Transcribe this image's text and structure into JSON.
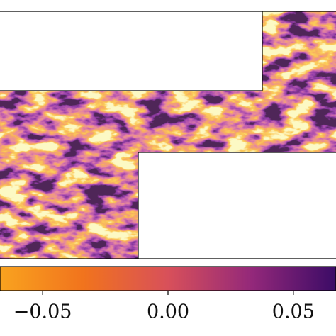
{
  "chart_data": {
    "type": "heatmap",
    "colorbar": {
      "clim": [
        -0.067,
        0.067
      ],
      "ticks": [
        {
          "value": -0.05,
          "label": "−0.05"
        },
        {
          "value": 0,
          "label": "0.00"
        },
        {
          "value": 0.05,
          "label": "0.05"
        }
      ]
    }
  }
}
